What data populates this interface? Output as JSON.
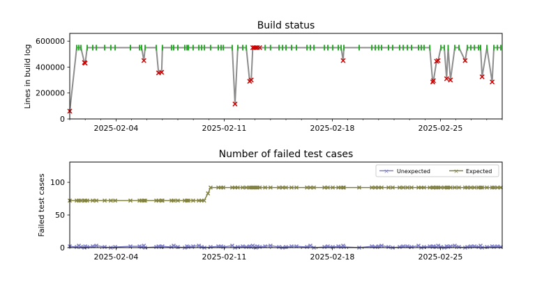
{
  "chart_data": [
    {
      "type": "scatter",
      "title": "Build status",
      "xlabel": "",
      "ylabel": "Lines in build log",
      "x_unit": "days since 2025-02-01",
      "xlim": [
        0,
        28
      ],
      "ylim": [
        0,
        660000
      ],
      "yticks": [
        0,
        200000,
        400000,
        600000
      ],
      "ytick_labels": [
        "0",
        "200000",
        "400000",
        "600000"
      ],
      "xticks": [
        3,
        10,
        17,
        24
      ],
      "xtick_labels": [
        "2025-02-04",
        "2025-02-11",
        "2025-02-18",
        "2025-02-25"
      ],
      "colors": {
        "line": "#8c8c8c",
        "success": "#22aa22",
        "failure": "#cc0000"
      },
      "success_builds": {
        "lines": 550000,
        "days": [
          0.45,
          0.59,
          0.72,
          1.13,
          1.49,
          1.72,
          2.26,
          2.66,
          2.94,
          3.93,
          4.52,
          4.65,
          4.88,
          5.6,
          6.0,
          6.59,
          6.73,
          7.0,
          7.45,
          7.59,
          7.68,
          7.99,
          8.36,
          8.54,
          8.72,
          9.12,
          9.62,
          9.8,
          9.94,
          10.52,
          10.88,
          11.2,
          11.43,
          12.65,
          13.0,
          13.55,
          13.78,
          14.0,
          14.36,
          14.68,
          15.36,
          15.58,
          15.81,
          16.49,
          16.71,
          17.03,
          17.39,
          17.57,
          17.75,
          18.74,
          19.56,
          19.78,
          20.0,
          20.19,
          20.64,
          20.91,
          21.36,
          21.59,
          21.86,
          22.13,
          22.58,
          22.76,
          22.94,
          23.31,
          24.03,
          24.25,
          24.5,
          24.93,
          25.2,
          25.74,
          25.97,
          26.2,
          26.47,
          26.6,
          27.01,
          27.46,
          27.69,
          27.91
        ]
      },
      "failed_builds": [
        [
          0.0,
          60000
        ],
        [
          0.95,
          435000
        ],
        [
          1.0,
          430000
        ],
        [
          4.8,
          450000
        ],
        [
          5.75,
          355000
        ],
        [
          5.95,
          360000
        ],
        [
          10.7,
          115000
        ],
        [
          11.65,
          290000
        ],
        [
          11.75,
          300000
        ],
        [
          11.85,
          550000
        ],
        [
          11.95,
          550000
        ],
        [
          12.05,
          550000
        ],
        [
          12.15,
          550000
        ],
        [
          12.3,
          550000
        ],
        [
          17.7,
          450000
        ],
        [
          23.5,
          285000
        ],
        [
          23.55,
          295000
        ],
        [
          23.75,
          445000
        ],
        [
          23.85,
          450000
        ],
        [
          24.4,
          310000
        ],
        [
          24.65,
          300000
        ],
        [
          25.6,
          450000
        ],
        [
          26.7,
          325000
        ],
        [
          27.35,
          285000
        ]
      ]
    },
    {
      "type": "line",
      "title": "Number of failed test cases",
      "xlabel": "",
      "ylabel": "Failed test cases",
      "xlim": [
        0,
        28
      ],
      "ylim": [
        0,
        131
      ],
      "yticks": [
        0,
        50,
        100
      ],
      "ytick_labels": [
        "0",
        "50",
        "100"
      ],
      "xticks": [
        3,
        10,
        17,
        24
      ],
      "xtick_labels": [
        "2025-02-04",
        "2025-02-11",
        "2025-02-18",
        "2025-02-25"
      ],
      "legend": {
        "position": "top-right",
        "entries": [
          "Unexpected",
          "Expected"
        ]
      },
      "series": [
        {
          "name": "Unexpected",
          "color": "#8080c8",
          "values_cycle": [
            2,
            1,
            3,
            1,
            0,
            2,
            1,
            2,
            3,
            1,
            0,
            1,
            2,
            2,
            1,
            3,
            0,
            1,
            2,
            1
          ]
        },
        {
          "name": "Expected",
          "color": "#808040",
          "before": 72,
          "transition": [
            [
              8.7,
              72
            ],
            [
              8.95,
              83
            ],
            [
              9.12,
              92
            ]
          ],
          "after": 92
        }
      ]
    }
  ]
}
